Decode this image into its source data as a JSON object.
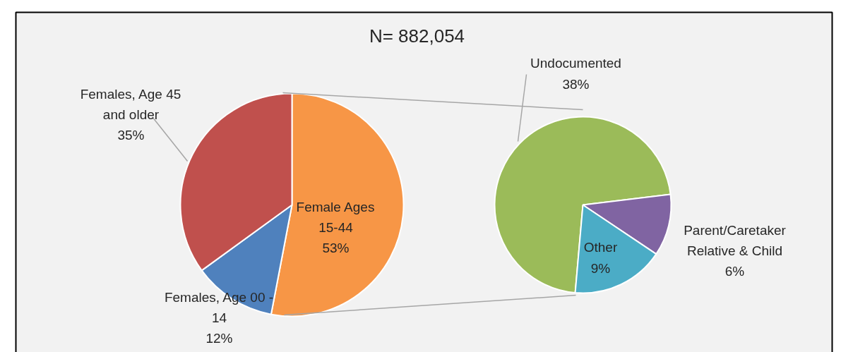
{
  "chart_data": [
    {
      "type": "pie",
      "title": "N= 882,054",
      "categories": [
        "Female Ages 15-44",
        "Females, Age 00 - 14",
        "Females, Age 45 and older"
      ],
      "values": [
        53,
        12,
        35
      ],
      "value_labels": [
        "53%",
        "12%",
        "35%"
      ],
      "colors": [
        "#f79646",
        "#4f81bd",
        "#c0504d"
      ]
    },
    {
      "type": "pie",
      "categories": [
        "Undocumented",
        "Parent/Caretaker Relative & Child",
        "Other"
      ],
      "values": [
        38,
        6,
        9
      ],
      "value_labels": [
        "38%",
        "6%",
        "9%"
      ],
      "colors": [
        "#9bbb59",
        "#8064a2",
        "#4bacc6"
      ]
    }
  ]
}
